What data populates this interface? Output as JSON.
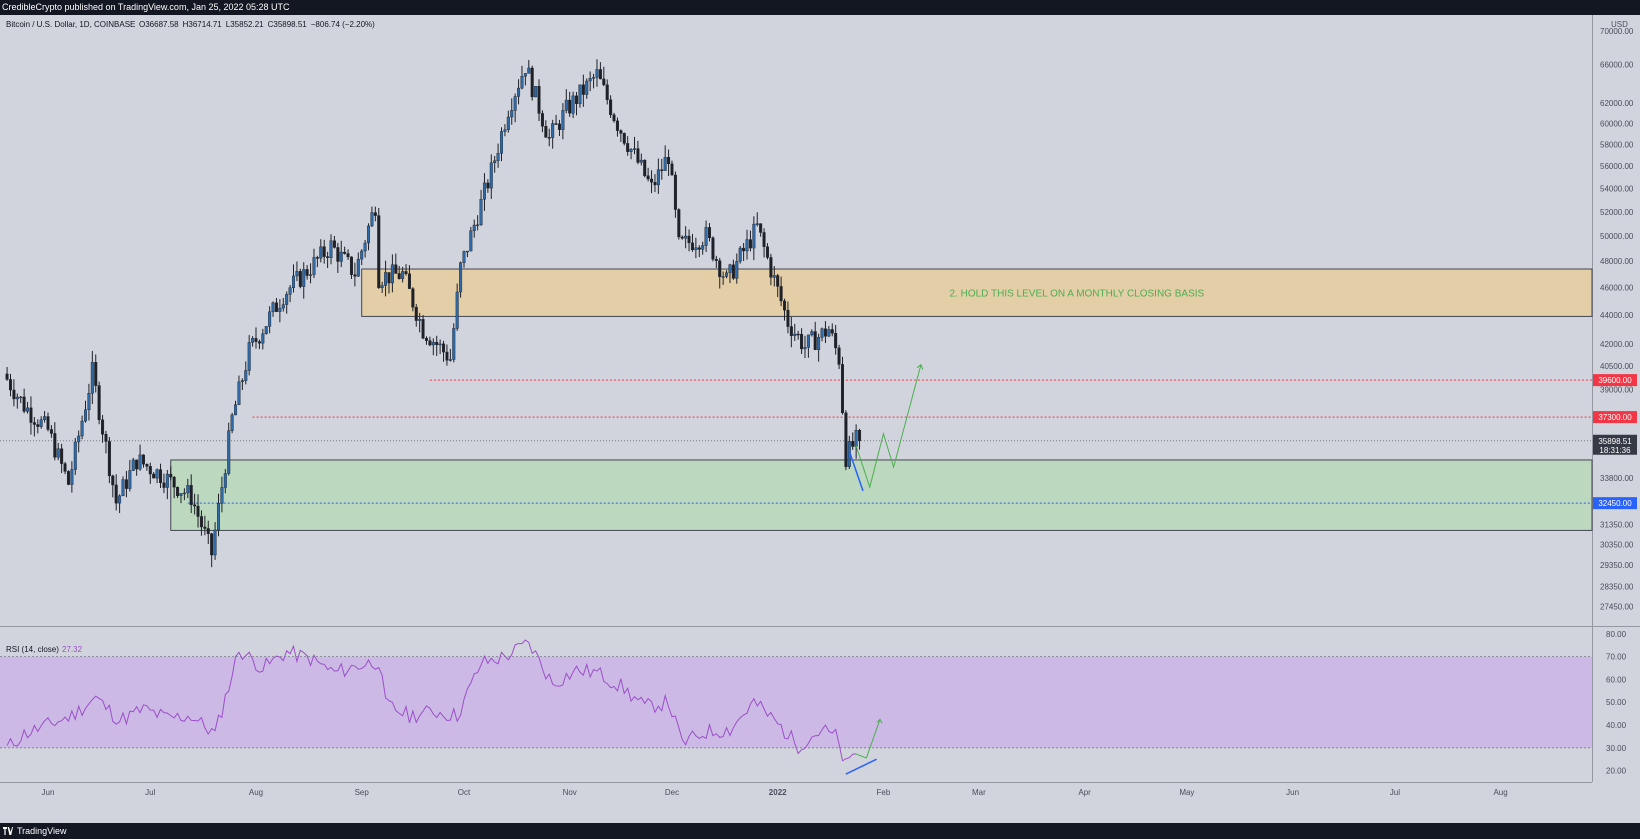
{
  "header": {
    "publisher": "CredibleCrypto published on TradingView.com, Jan 25, 2022 05:28 UTC"
  },
  "footer": {
    "brand": "TradingView"
  },
  "colors": {
    "up_candle": "#2e6aa8",
    "down_candle": "#1f2128",
    "resistance_zone": "#e8cc9e",
    "support_zone": "#b8d8ba",
    "rsi_band": "#c9b0e8",
    "rsi_line": "#9c4fc8",
    "projection": "#4caf50",
    "trendline": "#2962ff",
    "red_level": "#f23645",
    "blue_level": "#2962ff",
    "background": "#d1d4dc"
  },
  "chart_data": [
    {
      "type": "candlestick",
      "title": "Bitcoin / U.S. Dollar, 1D, COINBASE",
      "ohlc_label": {
        "o_prefix": "O",
        "o": "36687.58",
        "h_prefix": "H",
        "h": "36714.71",
        "l_prefix": "L",
        "l": "35852.21",
        "c_prefix": "C",
        "c": "35898.51",
        "change": "−806.74 (−2.20%)"
      },
      "currency": "USD",
      "y_scale": "log",
      "ylim": [
        26600,
        71500
      ],
      "y_ticks": [
        66000,
        62000,
        60000,
        58000,
        56000,
        54000,
        52000,
        50000,
        48000,
        46000,
        44000,
        42000,
        40500,
        39000,
        33800,
        31350,
        30350,
        29350,
        28350,
        27450
      ],
      "y_tick_labels": [
        "66000.00",
        "62000.00",
        "60000.00",
        "58000.00",
        "56000.00",
        "54000.00",
        "52000.00",
        "50000.00",
        "48000.00",
        "46000.00",
        "44000.00",
        "42000.00",
        "40500.00",
        "39000.00",
        "33800.00",
        "31350.00",
        "30350.00",
        "29350.00",
        "28350.00",
        "27450.00"
      ],
      "top_partial_tick": "70000.00",
      "x_months": [
        "Jun",
        "Jul",
        "Aug",
        "Sep",
        "Oct",
        "Nov",
        "Dec",
        "2022",
        "Feb",
        "Mar",
        "Apr",
        "May",
        "Jun",
        "Jul",
        "Aug"
      ],
      "x_month_starts": [
        "2021-06-01",
        "2021-07-01",
        "2021-08-01",
        "2021-09-01",
        "2021-10-01",
        "2021-11-01",
        "2021-12-01",
        "2022-01-01",
        "2022-02-01",
        "2022-03-01",
        "2022-04-01",
        "2022-05-01",
        "2022-06-01",
        "2022-07-01",
        "2022-08-01"
      ],
      "price_path": [
        [
          "2021-05-20",
          40000
        ],
        [
          "2021-05-26",
          38000
        ],
        [
          "2021-06-02",
          36500
        ],
        [
          "2021-06-08",
          33500
        ],
        [
          "2021-06-15",
          40100
        ],
        [
          "2021-06-22",
          32500
        ],
        [
          "2021-06-28",
          34800
        ],
        [
          "2021-07-05",
          34000
        ],
        [
          "2021-07-14",
          32800
        ],
        [
          "2021-07-20",
          29900
        ],
        [
          "2021-07-26",
          37200
        ],
        [
          "2021-07-31",
          41500
        ],
        [
          "2021-08-10",
          45500
        ],
        [
          "2021-08-16",
          47000
        ],
        [
          "2021-08-24",
          49200
        ],
        [
          "2021-08-31",
          47100
        ],
        [
          "2021-09-06",
          52600
        ],
        [
          "2021-09-07",
          46800
        ],
        [
          "2021-09-14",
          47000
        ],
        [
          "2021-09-20",
          43000
        ],
        [
          "2021-09-28",
          41000
        ],
        [
          "2021-10-01",
          47500
        ],
        [
          "2021-10-10",
          55500
        ],
        [
          "2021-10-15",
          61500
        ],
        [
          "2021-10-20",
          65900
        ],
        [
          "2021-10-27",
          58500
        ],
        [
          "2021-11-01",
          61300
        ],
        [
          "2021-11-10",
          64900
        ],
        [
          "2021-11-16",
          60000
        ],
        [
          "2021-11-26",
          54000
        ],
        [
          "2021-12-01",
          57000
        ],
        [
          "2021-12-04",
          49200
        ],
        [
          "2021-12-12",
          50000
        ],
        [
          "2021-12-18",
          46500
        ],
        [
          "2021-12-27",
          50700
        ],
        [
          "2022-01-05",
          43500
        ],
        [
          "2022-01-10",
          41800
        ],
        [
          "2022-01-17",
          43000
        ],
        [
          "2022-01-20",
          41000
        ],
        [
          "2022-01-22",
          35000
        ],
        [
          "2022-01-25",
          35898.51
        ]
      ],
      "levels": [
        {
          "value": 39600,
          "label": "39600.00",
          "color": "#f23645"
        },
        {
          "value": 37300,
          "label": "37300.00",
          "color": "#f23645"
        },
        {
          "value": 32450,
          "label": "32450.00",
          "color": "#2962ff"
        }
      ],
      "current_price": {
        "value": 35898.51,
        "label": "35898.51",
        "countdown": "18:31:36"
      },
      "zones": [
        {
          "name": "resistance",
          "y_low": 43900,
          "y_high": 47400,
          "x_start": "2021-09-01",
          "label": "2. HOLD THIS LEVEL ON A MONTHLY CLOSING BASIS"
        },
        {
          "name": "support",
          "y_low": 31050,
          "y_high": 34800,
          "x_start": "2021-07-07"
        }
      ],
      "projection": [
        [
          "2022-01-24",
          35600
        ],
        [
          "2022-01-28",
          33300
        ],
        [
          "2022-02-01",
          36300
        ],
        [
          "2022-02-04",
          34400
        ],
        [
          "2022-02-12",
          40600
        ]
      ],
      "trendline": [
        [
          "2022-01-22",
          35300
        ],
        [
          "2022-01-26",
          33100
        ]
      ]
    },
    {
      "type": "line",
      "title": "RSI (14, close)",
      "last_value": "27.32",
      "ylim": [
        15,
        83
      ],
      "y_ticks": [
        80,
        70,
        60,
        50,
        40,
        30,
        20
      ],
      "y_tick_labels": [
        "80.00",
        "70.00",
        "60.00",
        "50.00",
        "40.00",
        "30.00",
        "20.00"
      ],
      "band": [
        30,
        70
      ],
      "x": [
        "2021-05-20",
        "2021-05-25",
        "2021-06-01",
        "2021-06-08",
        "2021-06-15",
        "2021-06-22",
        "2021-06-29",
        "2021-07-06",
        "2021-07-13",
        "2021-07-20",
        "2021-07-27",
        "2021-08-03",
        "2021-08-10",
        "2021-08-17",
        "2021-08-24",
        "2021-08-31",
        "2021-09-06",
        "2021-09-08",
        "2021-09-15",
        "2021-09-22",
        "2021-09-29",
        "2021-10-06",
        "2021-10-13",
        "2021-10-20",
        "2021-10-27",
        "2021-11-03",
        "2021-11-09",
        "2021-11-16",
        "2021-11-23",
        "2021-11-30",
        "2021-12-04",
        "2021-12-11",
        "2021-12-18",
        "2021-12-25",
        "2021-12-31",
        "2022-01-07",
        "2022-01-14",
        "2022-01-18",
        "2022-01-21",
        "2022-01-24"
      ],
      "values": [
        30,
        36,
        40,
        44,
        52,
        42,
        47,
        43,
        44,
        36,
        73,
        65,
        72,
        69,
        63,
        66,
        68,
        49,
        44,
        46,
        44,
        67,
        70,
        76,
        58,
        64,
        63,
        57,
        48,
        50,
        32,
        37,
        38,
        50,
        42,
        31,
        38,
        35,
        22,
        27.32
      ],
      "projection": [
        [
          "2022-01-24",
          27.3
        ],
        [
          "2022-01-27",
          25.5
        ],
        [
          "2022-01-31",
          42.5
        ]
      ],
      "trendline": [
        [
          "2022-01-21",
          18.5
        ],
        [
          "2022-01-30",
          25
        ]
      ]
    }
  ]
}
